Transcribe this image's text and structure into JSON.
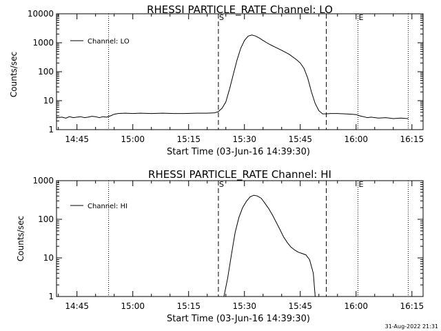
{
  "timestamp": "31-Aug-2022 21:31",
  "chart_data": [
    {
      "type": "line",
      "title": "RHESSI PARTICLE_RATE Channel: LO",
      "xlabel": "Start Time (03-Jun-16 14:39:30)",
      "ylabel": "Counts/sec",
      "xlim": [
        "14:39:30",
        "16:18:00"
      ],
      "ylim": [
        1,
        10000
      ],
      "yscale": "log",
      "xticks": [
        "14:45",
        "15:00",
        "15:15",
        "15:30",
        "15:45",
        "16:00",
        "16:15"
      ],
      "yticks": [
        "1",
        "10",
        "100",
        "1000",
        "10000"
      ],
      "legend": "top-left",
      "grid": false,
      "markers": [
        {
          "label": "S",
          "time": "15:23:00",
          "style": "dashed"
        },
        {
          "label": "",
          "time": "15:52:00",
          "style": "dashed"
        },
        {
          "label": "",
          "time": "14:53:30",
          "style": "dotted"
        },
        {
          "label": "E",
          "time": "16:00:30",
          "style": "dotted"
        },
        {
          "label": "",
          "time": "16:14:00",
          "style": "dotted"
        }
      ],
      "series": [
        {
          "name": "Channel: LO",
          "x": [
            "14:39:30",
            "14:41:00",
            "14:42:00",
            "14:43:00",
            "14:44:00",
            "14:45:00",
            "14:46:00",
            "14:47:00",
            "14:48:00",
            "14:49:00",
            "14:50:00",
            "14:51:00",
            "14:52:00",
            "14:53:00",
            "14:54:00",
            "14:55:00",
            "14:56:00",
            "14:58:00",
            "15:00:00",
            "15:02:00",
            "15:05:00",
            "15:08:00",
            "15:11:00",
            "15:14:00",
            "15:17:00",
            "15:20:00",
            "15:22:00",
            "15:23:00",
            "15:24:00",
            "15:25:00",
            "15:26:00",
            "15:27:00",
            "15:28:00",
            "15:29:00",
            "15:30:00",
            "15:31:00",
            "15:32:00",
            "15:33:00",
            "15:34:00",
            "15:35:00",
            "15:36:00",
            "15:37:00",
            "15:38:00",
            "15:40:00",
            "15:42:00",
            "15:44:00",
            "15:45:00",
            "15:46:00",
            "15:47:00",
            "15:48:00",
            "15:49:00",
            "15:50:00",
            "15:51:00",
            "15:52:00",
            "15:53:00",
            "15:55:00",
            "15:57:00",
            "15:59:00",
            "16:00:00",
            "16:01:00",
            "16:02:00",
            "16:03:00",
            "16:04:00",
            "16:06:00",
            "16:08:00",
            "16:10:00",
            "16:12:00",
            "16:14:00"
          ],
          "y": [
            2.6,
            2.7,
            2.5,
            2.8,
            2.6,
            2.7,
            2.8,
            2.6,
            2.7,
            2.9,
            2.8,
            2.6,
            2.8,
            2.7,
            3.0,
            3.4,
            3.6,
            3.7,
            3.6,
            3.7,
            3.6,
            3.7,
            3.6,
            3.6,
            3.7,
            3.7,
            3.8,
            4.2,
            5.5,
            9,
            25,
            80,
            250,
            650,
            1200,
            1700,
            1850,
            1700,
            1450,
            1200,
            1000,
            850,
            730,
            550,
            400,
            260,
            200,
            130,
            60,
            20,
            8,
            4.5,
            3.5,
            3.5,
            3.6,
            3.6,
            3.5,
            3.4,
            3.3,
            3.0,
            2.8,
            2.6,
            2.7,
            2.5,
            2.6,
            2.4,
            2.5,
            2.4
          ]
        }
      ]
    },
    {
      "type": "line",
      "title": "RHESSI PARTICLE_RATE Channel: HI",
      "xlabel": "Start Time (03-Jun-16 14:39:30)",
      "ylabel": "Counts/sec",
      "xlim": [
        "14:39:30",
        "16:18:00"
      ],
      "ylim": [
        1,
        1000
      ],
      "yscale": "log",
      "xticks": [
        "14:45",
        "15:00",
        "15:15",
        "15:30",
        "15:45",
        "16:00",
        "16:15"
      ],
      "yticks": [
        "1",
        "10",
        "100",
        "1000"
      ],
      "legend": "top-left",
      "grid": false,
      "markers": [
        {
          "label": "S",
          "time": "15:23:00",
          "style": "dashed"
        },
        {
          "label": "",
          "time": "15:52:00",
          "style": "dashed"
        },
        {
          "label": "",
          "time": "14:53:30",
          "style": "dotted"
        },
        {
          "label": "E",
          "time": "16:00:30",
          "style": "dotted"
        },
        {
          "label": "",
          "time": "16:14:00",
          "style": "dotted"
        }
      ],
      "series": [
        {
          "name": "Channel: HI",
          "x": [
            "15:24:30",
            "15:25:30",
            "15:26:30",
            "15:27:30",
            "15:28:30",
            "15:29:30",
            "15:30:30",
            "15:31:30",
            "15:32:30",
            "15:33:30",
            "15:34:30",
            "15:35:30",
            "15:36:30",
            "15:37:30",
            "15:38:30",
            "15:39:30",
            "15:40:30",
            "15:41:30",
            "15:42:30",
            "15:43:30",
            "15:44:30",
            "15:45:30",
            "15:46:30",
            "15:47:30",
            "15:48:30",
            "15:49:00"
          ],
          "y": [
            1.0,
            3,
            12,
            45,
            110,
            200,
            290,
            380,
            420,
            400,
            350,
            260,
            190,
            130,
            85,
            55,
            35,
            25,
            19,
            16,
            14,
            13,
            12,
            9,
            4,
            1.0
          ]
        }
      ]
    }
  ]
}
